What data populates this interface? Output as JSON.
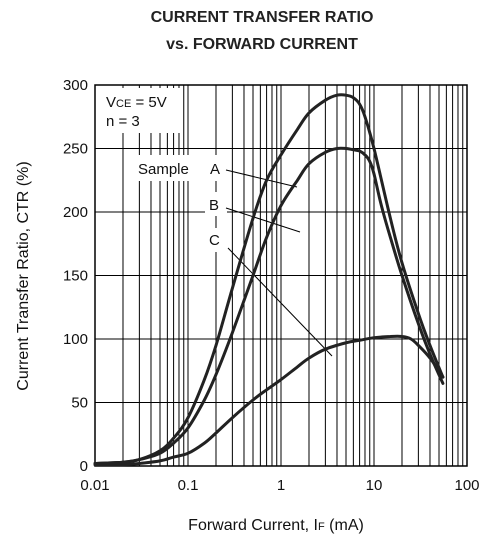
{
  "chart_data": {
    "type": "line",
    "title_line1": "CURRENT  TRANSFER RATIO",
    "title_line2": "vs.  FORWARD CURRENT",
    "xlabel_main": "Forward Current, I",
    "xlabel_sub": "F",
    "xlabel_unit": " (mA)",
    "ylabel": "Current Transfer Ratio, CTR (%)",
    "x_scale": "log",
    "xlim": [
      0.01,
      100
    ],
    "ylim": [
      0,
      300
    ],
    "x_ticks": [
      "0.01",
      "0.1",
      "1",
      "10",
      "100"
    ],
    "y_ticks": [
      "0",
      "50",
      "100",
      "150",
      "200",
      "250",
      "300"
    ],
    "grid": true,
    "annotations": {
      "condition_vce_main": "V",
      "condition_vce_sub": "CE",
      "condition_vce_value": " = 5V",
      "condition_n": "n = 3",
      "sample_prefix": "Sample",
      "label_a": "A",
      "label_b": "B",
      "label_c": "C"
    },
    "series": [
      {
        "label": "A",
        "x": [
          0.01,
          0.02,
          0.03,
          0.05,
          0.07,
          0.1,
          0.15,
          0.2,
          0.3,
          0.5,
          0.7,
          1,
          1.5,
          2,
          3,
          4,
          5,
          6,
          7,
          8,
          10,
          15,
          20,
          30,
          40,
          55
        ],
        "y": [
          2,
          3,
          5,
          12,
          22,
          38,
          68,
          95,
          140,
          195,
          225,
          245,
          265,
          278,
          288,
          292,
          292,
          290,
          285,
          275,
          250,
          195,
          160,
          120,
          95,
          70
        ]
      },
      {
        "label": "B",
        "x": [
          0.01,
          0.02,
          0.03,
          0.05,
          0.07,
          0.1,
          0.15,
          0.2,
          0.3,
          0.5,
          0.7,
          1,
          1.5,
          2,
          3,
          4,
          5,
          6,
          7,
          8,
          9,
          10,
          12,
          15,
          20,
          30,
          40,
          55
        ],
        "y": [
          2,
          3,
          5,
          10,
          18,
          30,
          52,
          72,
          105,
          150,
          180,
          205,
          225,
          238,
          247,
          250,
          250,
          249,
          248,
          245,
          240,
          230,
          205,
          180,
          150,
          112,
          88,
          65
        ]
      },
      {
        "label": "C",
        "x": [
          0.01,
          0.02,
          0.03,
          0.05,
          0.07,
          0.1,
          0.15,
          0.2,
          0.3,
          0.5,
          0.7,
          1,
          1.5,
          2,
          3,
          5,
          7,
          10,
          15,
          20,
          25,
          30,
          40,
          55
        ],
        "y": [
          1,
          1,
          2,
          4,
          7,
          10,
          18,
          26,
          38,
          52,
          60,
          68,
          78,
          85,
          92,
          97,
          99,
          101,
          102,
          102,
          100,
          95,
          85,
          70
        ]
      }
    ]
  }
}
